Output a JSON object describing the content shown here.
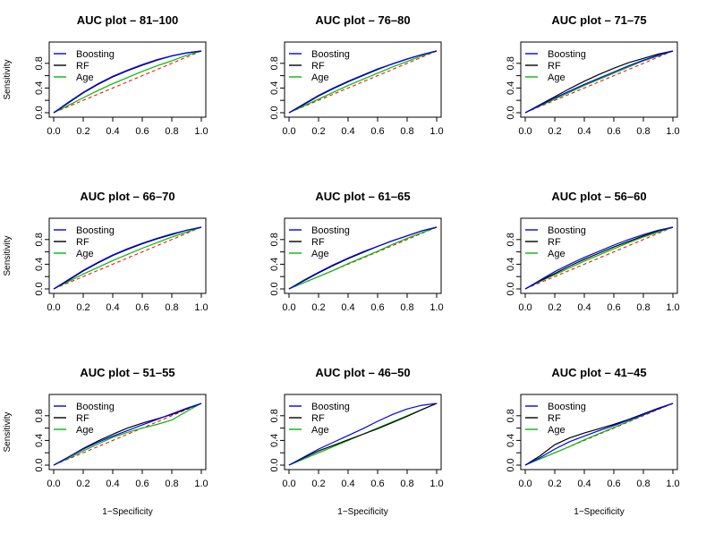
{
  "figure": {
    "legend_position": "top-left",
    "grid": false,
    "diagonal_reference": {
      "color": "#ff0000",
      "style": "dashed"
    },
    "series_colors": {
      "Boosting": "#0000ff",
      "RF": "#000000",
      "Age": "#00bb00"
    }
  },
  "chart_data": [
    {
      "type": "line",
      "title": "AUC plot – 81–100",
      "xlabel": "",
      "ylabel": "Sensitivity",
      "xlim": [
        0,
        1
      ],
      "ylim": [
        0,
        1
      ],
      "xticks": [
        "0.0",
        "0.2",
        "0.4",
        "0.6",
        "0.8",
        "1.0"
      ],
      "yticks": [
        "0.0",
        "0.4",
        "0.8"
      ],
      "legend": [
        "Boosting",
        "RF",
        "Age"
      ],
      "series": [
        {
          "name": "Boosting",
          "color": "#0000ff",
          "x": [
            0,
            0.1,
            0.2,
            0.3,
            0.4,
            0.5,
            0.6,
            0.7,
            0.8,
            0.9,
            1
          ],
          "y": [
            0,
            0.17,
            0.33,
            0.47,
            0.59,
            0.69,
            0.78,
            0.86,
            0.92,
            0.97,
            1
          ]
        },
        {
          "name": "RF",
          "color": "#000000",
          "x": [
            0,
            0.1,
            0.2,
            0.3,
            0.4,
            0.5,
            0.6,
            0.7,
            0.8,
            0.9,
            1
          ],
          "y": [
            0,
            0.16,
            0.32,
            0.46,
            0.58,
            0.68,
            0.77,
            0.85,
            0.92,
            0.97,
            1
          ]
        },
        {
          "name": "Age",
          "color": "#00bb00",
          "x": [
            0,
            0.1,
            0.2,
            0.3,
            0.4,
            0.5,
            0.6,
            0.7,
            0.8,
            0.9,
            1
          ],
          "y": [
            0,
            0.12,
            0.24,
            0.36,
            0.47,
            0.57,
            0.67,
            0.76,
            0.84,
            0.93,
            1
          ]
        }
      ]
    },
    {
      "type": "line",
      "title": "AUC plot – 76–80",
      "xlabel": "",
      "ylabel": "",
      "xlim": [
        0,
        1
      ],
      "ylim": [
        0,
        1
      ],
      "xticks": [
        "0.0",
        "0.2",
        "0.4",
        "0.6",
        "0.8",
        "1.0"
      ],
      "yticks": [
        "0.0",
        "0.4",
        "0.8"
      ],
      "legend": [
        "Boosting",
        "RF",
        "Age"
      ],
      "series": [
        {
          "name": "Boosting",
          "color": "#0000ff",
          "x": [
            0,
            0.1,
            0.2,
            0.3,
            0.4,
            0.5,
            0.6,
            0.7,
            0.8,
            0.9,
            1
          ],
          "y": [
            0,
            0.14,
            0.28,
            0.4,
            0.51,
            0.61,
            0.71,
            0.79,
            0.87,
            0.94,
            1
          ]
        },
        {
          "name": "RF",
          "color": "#000000",
          "x": [
            0,
            0.1,
            0.2,
            0.3,
            0.4,
            0.5,
            0.6,
            0.7,
            0.8,
            0.9,
            1
          ],
          "y": [
            0,
            0.13,
            0.27,
            0.39,
            0.5,
            0.6,
            0.7,
            0.79,
            0.87,
            0.94,
            1
          ]
        },
        {
          "name": "Age",
          "color": "#00bb00",
          "x": [
            0,
            0.1,
            0.2,
            0.3,
            0.4,
            0.5,
            0.6,
            0.7,
            0.8,
            0.9,
            1
          ],
          "y": [
            0,
            0.11,
            0.22,
            0.33,
            0.44,
            0.54,
            0.64,
            0.74,
            0.83,
            0.92,
            1
          ]
        }
      ]
    },
    {
      "type": "line",
      "title": "AUC plot – 71–75",
      "xlabel": "",
      "ylabel": "",
      "xlim": [
        0,
        1
      ],
      "ylim": [
        0,
        1
      ],
      "xticks": [
        "0.0",
        "0.2",
        "0.4",
        "0.6",
        "0.8",
        "1.0"
      ],
      "yticks": [
        "0.0",
        "0.4",
        "0.8"
      ],
      "legend": [
        "Boosting",
        "RF",
        "Age"
      ],
      "series": [
        {
          "name": "Boosting",
          "color": "#0000ff",
          "x": [
            0,
            0.1,
            0.2,
            0.3,
            0.4,
            0.5,
            0.6,
            0.7,
            0.8,
            0.9,
            1
          ],
          "y": [
            0,
            0.12,
            0.24,
            0.35,
            0.46,
            0.56,
            0.66,
            0.76,
            0.85,
            0.93,
            1
          ]
        },
        {
          "name": "RF",
          "color": "#000000",
          "x": [
            0,
            0.1,
            0.2,
            0.3,
            0.4,
            0.5,
            0.6,
            0.7,
            0.8,
            0.9,
            1
          ],
          "y": [
            0,
            0.13,
            0.26,
            0.39,
            0.51,
            0.62,
            0.72,
            0.81,
            0.88,
            0.95,
            1
          ]
        },
        {
          "name": "Age",
          "color": "#00bb00",
          "x": [
            0,
            0.1,
            0.2,
            0.3,
            0.4,
            0.5,
            0.6,
            0.7,
            0.8,
            0.9,
            1
          ],
          "y": [
            0,
            0.11,
            0.22,
            0.33,
            0.44,
            0.54,
            0.64,
            0.74,
            0.84,
            0.92,
            1
          ]
        }
      ]
    },
    {
      "type": "line",
      "title": "AUC plot – 66–70",
      "xlabel": "",
      "ylabel": "Sensitivity",
      "xlim": [
        0,
        1
      ],
      "ylim": [
        0,
        1
      ],
      "xticks": [
        "0.0",
        "0.2",
        "0.4",
        "0.6",
        "0.8",
        "1.0"
      ],
      "yticks": [
        "0.0",
        "0.4",
        "0.8"
      ],
      "legend": [
        "Boosting",
        "RF",
        "Age"
      ],
      "series": [
        {
          "name": "Boosting",
          "color": "#0000ff",
          "x": [
            0,
            0.1,
            0.2,
            0.3,
            0.4,
            0.5,
            0.6,
            0.7,
            0.8,
            0.9,
            1
          ],
          "y": [
            0,
            0.15,
            0.3,
            0.43,
            0.55,
            0.65,
            0.74,
            0.82,
            0.89,
            0.95,
            1
          ]
        },
        {
          "name": "RF",
          "color": "#000000",
          "x": [
            0,
            0.1,
            0.2,
            0.3,
            0.4,
            0.5,
            0.6,
            0.7,
            0.8,
            0.9,
            1
          ],
          "y": [
            0,
            0.14,
            0.29,
            0.42,
            0.54,
            0.64,
            0.73,
            0.81,
            0.88,
            0.95,
            1
          ]
        },
        {
          "name": "Age",
          "color": "#00bb00",
          "x": [
            0,
            0.1,
            0.2,
            0.3,
            0.4,
            0.5,
            0.6,
            0.7,
            0.8,
            0.9,
            1
          ],
          "y": [
            0,
            0.12,
            0.24,
            0.35,
            0.46,
            0.56,
            0.66,
            0.75,
            0.84,
            0.92,
            1
          ]
        }
      ]
    },
    {
      "type": "line",
      "title": "AUC plot – 61–65",
      "xlabel": "",
      "ylabel": "",
      "xlim": [
        0,
        1
      ],
      "ylim": [
        0,
        1
      ],
      "xticks": [
        "0.0",
        "0.2",
        "0.4",
        "0.6",
        "0.8",
        "1.0"
      ],
      "yticks": [
        "0.0",
        "0.4",
        "0.8"
      ],
      "legend": [
        "Boosting",
        "RF",
        "Age"
      ],
      "series": [
        {
          "name": "Boosting",
          "color": "#0000ff",
          "x": [
            0,
            0.1,
            0.2,
            0.3,
            0.4,
            0.5,
            0.6,
            0.7,
            0.8,
            0.9,
            1
          ],
          "y": [
            0,
            0.14,
            0.27,
            0.39,
            0.5,
            0.6,
            0.69,
            0.78,
            0.86,
            0.94,
            1
          ]
        },
        {
          "name": "RF",
          "color": "#000000",
          "x": [
            0,
            0.1,
            0.2,
            0.3,
            0.4,
            0.5,
            0.6,
            0.7,
            0.8,
            0.9,
            1
          ],
          "y": [
            0,
            0.13,
            0.26,
            0.38,
            0.49,
            0.59,
            0.69,
            0.78,
            0.86,
            0.94,
            1
          ]
        },
        {
          "name": "Age",
          "color": "#00bb00",
          "x": [
            0,
            0.1,
            0.2,
            0.3,
            0.4,
            0.5,
            0.6,
            0.7,
            0.8,
            0.9,
            1
          ],
          "y": [
            0,
            0.1,
            0.2,
            0.3,
            0.41,
            0.51,
            0.61,
            0.72,
            0.82,
            0.91,
            1
          ]
        }
      ]
    },
    {
      "type": "line",
      "title": "AUC plot – 56–60",
      "xlabel": "",
      "ylabel": "",
      "xlim": [
        0,
        1
      ],
      "ylim": [
        0,
        1
      ],
      "xticks": [
        "0.0",
        "0.2",
        "0.4",
        "0.6",
        "0.8",
        "1.0"
      ],
      "yticks": [
        "0.0",
        "0.4",
        "0.8"
      ],
      "legend": [
        "Boosting",
        "RF",
        "Age"
      ],
      "series": [
        {
          "name": "Boosting",
          "color": "#0000ff",
          "x": [
            0,
            0.1,
            0.2,
            0.3,
            0.4,
            0.5,
            0.6,
            0.7,
            0.8,
            0.9,
            1
          ],
          "y": [
            0,
            0.14,
            0.28,
            0.4,
            0.51,
            0.61,
            0.71,
            0.8,
            0.88,
            0.95,
            1
          ]
        },
        {
          "name": "RF",
          "color": "#000000",
          "x": [
            0,
            0.1,
            0.2,
            0.3,
            0.4,
            0.5,
            0.6,
            0.7,
            0.8,
            0.9,
            1
          ],
          "y": [
            0,
            0.13,
            0.25,
            0.37,
            0.48,
            0.58,
            0.68,
            0.77,
            0.86,
            0.94,
            1
          ]
        },
        {
          "name": "Age",
          "color": "#00bb00",
          "x": [
            0,
            0.1,
            0.2,
            0.3,
            0.4,
            0.5,
            0.6,
            0.7,
            0.8,
            0.9,
            1
          ],
          "y": [
            0,
            0.12,
            0.23,
            0.34,
            0.45,
            0.55,
            0.65,
            0.75,
            0.84,
            0.92,
            1
          ]
        }
      ]
    },
    {
      "type": "line",
      "title": "AUC plot – 51–55",
      "xlabel": "1−Specificity",
      "ylabel": "Sensitivity",
      "xlim": [
        0,
        1
      ],
      "ylim": [
        0,
        1
      ],
      "xticks": [
        "0.0",
        "0.2",
        "0.4",
        "0.6",
        "0.8",
        "1.0"
      ],
      "yticks": [
        "0.0",
        "0.4",
        "0.8"
      ],
      "legend": [
        "Boosting",
        "RF",
        "Age"
      ],
      "series": [
        {
          "name": "Boosting",
          "color": "#0000ff",
          "x": [
            0,
            0.1,
            0.2,
            0.3,
            0.4,
            0.5,
            0.6,
            0.7,
            0.8,
            0.9,
            1
          ],
          "y": [
            0,
            0.13,
            0.26,
            0.37,
            0.47,
            0.56,
            0.65,
            0.74,
            0.83,
            0.92,
            1
          ]
        },
        {
          "name": "RF",
          "color": "#000000",
          "x": [
            0,
            0.1,
            0.2,
            0.3,
            0.4,
            0.5,
            0.6,
            0.7,
            0.8,
            0.9,
            1
          ],
          "y": [
            0,
            0.13,
            0.27,
            0.39,
            0.5,
            0.6,
            0.68,
            0.75,
            0.82,
            0.91,
            1
          ]
        },
        {
          "name": "Age",
          "color": "#00bb00",
          "x": [
            0,
            0.1,
            0.2,
            0.3,
            0.4,
            0.5,
            0.6,
            0.7,
            0.8,
            0.9,
            1
          ],
          "y": [
            0,
            0.11,
            0.23,
            0.34,
            0.45,
            0.53,
            0.6,
            0.66,
            0.73,
            0.87,
            1
          ]
        }
      ]
    },
    {
      "type": "line",
      "title": "AUC plot – 46–50",
      "xlabel": "1−Specificity",
      "ylabel": "",
      "xlim": [
        0,
        1
      ],
      "ylim": [
        0,
        1
      ],
      "xticks": [
        "0.0",
        "0.2",
        "0.4",
        "0.6",
        "0.8",
        "1.0"
      ],
      "yticks": [
        "0.0",
        "0.4",
        "0.8"
      ],
      "legend": [
        "Boosting",
        "RF",
        "Age"
      ],
      "series": [
        {
          "name": "Boosting",
          "color": "#0000ff",
          "x": [
            0,
            0.1,
            0.2,
            0.3,
            0.4,
            0.5,
            0.6,
            0.7,
            0.8,
            0.9,
            1
          ],
          "y": [
            0,
            0.13,
            0.26,
            0.37,
            0.48,
            0.59,
            0.71,
            0.82,
            0.91,
            0.97,
            1
          ]
        },
        {
          "name": "RF",
          "color": "#000000",
          "x": [
            0,
            0.1,
            0.2,
            0.3,
            0.4,
            0.5,
            0.6,
            0.7,
            0.8,
            0.9,
            1
          ],
          "y": [
            0,
            0.12,
            0.23,
            0.32,
            0.41,
            0.5,
            0.59,
            0.69,
            0.79,
            0.9,
            1
          ]
        },
        {
          "name": "Age",
          "color": "#00bb00",
          "x": [
            0,
            0.1,
            0.2,
            0.3,
            0.4,
            0.5,
            0.6,
            0.7,
            0.8,
            0.9,
            1
          ],
          "y": [
            0,
            0.1,
            0.2,
            0.3,
            0.4,
            0.5,
            0.6,
            0.7,
            0.8,
            0.9,
            1
          ]
        }
      ]
    },
    {
      "type": "line",
      "title": "AUC plot – 41–45",
      "xlabel": "1−Specificity",
      "ylabel": "",
      "xlim": [
        0,
        1
      ],
      "ylim": [
        0,
        1
      ],
      "xticks": [
        "0.0",
        "0.2",
        "0.4",
        "0.6",
        "0.8",
        "1.0"
      ],
      "yticks": [
        "0.0",
        "0.4",
        "0.8"
      ],
      "legend": [
        "Boosting",
        "RF",
        "Age"
      ],
      "series": [
        {
          "name": "Boosting",
          "color": "#0000ff",
          "x": [
            0,
            0.1,
            0.2,
            0.3,
            0.4,
            0.5,
            0.6,
            0.7,
            0.8,
            0.9,
            1
          ],
          "y": [
            0,
            0.12,
            0.26,
            0.38,
            0.47,
            0.56,
            0.64,
            0.73,
            0.82,
            0.91,
            1
          ]
        },
        {
          "name": "RF",
          "color": "#000000",
          "x": [
            0,
            0.1,
            0.2,
            0.3,
            0.4,
            0.5,
            0.6,
            0.7,
            0.8,
            0.9,
            1
          ],
          "y": [
            0,
            0.15,
            0.33,
            0.44,
            0.52,
            0.59,
            0.66,
            0.74,
            0.83,
            0.92,
            1
          ]
        },
        {
          "name": "Age",
          "color": "#00bb00",
          "x": [
            0,
            0.1,
            0.2,
            0.3,
            0.4,
            0.5,
            0.6,
            0.7,
            0.8,
            0.9,
            1
          ],
          "y": [
            0,
            0.1,
            0.2,
            0.3,
            0.41,
            0.51,
            0.61,
            0.71,
            0.81,
            0.91,
            1
          ]
        }
      ]
    }
  ]
}
